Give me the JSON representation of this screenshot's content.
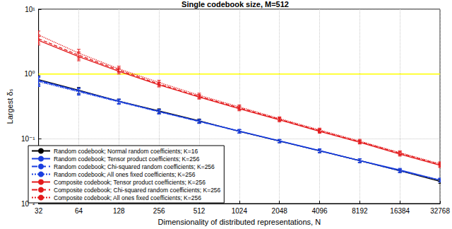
{
  "chart_data": {
    "type": "line",
    "title": "Single codebook size, M=512",
    "x_label": "Dimensionality of distributed representations, N",
    "y_label": "Largest δₛ",
    "log": true,
    "grid": true,
    "legend": "lower left",
    "x": [
      32,
      64,
      128,
      256,
      512,
      1024,
      2048,
      4096,
      8192,
      16384,
      32768
    ],
    "xlim": [
      32,
      32768
    ],
    "xticks": [
      32,
      64,
      128,
      256,
      512,
      1024,
      2048,
      4096,
      8192,
      16384,
      32768
    ],
    "ylim": [
      0.01,
      10
    ],
    "yticks": [
      {
        "value": 0.01,
        "label": "10⁻²"
      },
      {
        "value": 0.1,
        "label": "10⁻¹"
      },
      {
        "value": 1,
        "label": "10⁰"
      },
      {
        "value": 10,
        "label": "10¹"
      }
    ],
    "hlines": [
      {
        "y": 1,
        "color": "#ffff00"
      }
    ],
    "series": [
      {
        "name": "Random codebook; Normal random coefficients; K=16",
        "color": "#000000",
        "line_style": "solid",
        "values": [
          0.82,
          0.56,
          0.38,
          0.27,
          0.19,
          0.13,
          0.092,
          0.065,
          0.046,
          0.032,
          0.022
        ],
        "errors": [
          0.12,
          0.06,
          0.03,
          0.02,
          0.012,
          0.008,
          0.005,
          0.004,
          0.003,
          0.002,
          0.0015
        ]
      },
      {
        "name": "Random codebook; Tensor product coefficients; K=256",
        "color": "#1a3fe0",
        "line_style": "solid",
        "values": [
          0.8,
          0.55,
          0.38,
          0.265,
          0.187,
          0.132,
          0.093,
          0.066,
          0.046,
          0.033,
          0.023
        ],
        "errors": [
          0.12,
          0.06,
          0.03,
          0.02,
          0.012,
          0.008,
          0.005,
          0.004,
          0.003,
          0.002,
          0.0015
        ]
      },
      {
        "name": "Random codebook; Chi-squared random coefficients; K=256",
        "color": "#1a3fe0",
        "line_style": "dashed",
        "values": [
          0.78,
          0.54,
          0.375,
          0.262,
          0.185,
          0.13,
          0.092,
          0.065,
          0.046,
          0.032,
          0.023
        ],
        "errors": [
          0.12,
          0.06,
          0.03,
          0.02,
          0.012,
          0.008,
          0.005,
          0.004,
          0.003,
          0.002,
          0.0015
        ]
      },
      {
        "name": "Random codebook; All ones fixed coefficients; K=256",
        "color": "#1a3fe0",
        "line_style": "dotted",
        "values": [
          0.76,
          0.53,
          0.37,
          0.26,
          0.184,
          0.13,
          0.092,
          0.065,
          0.046,
          0.032,
          0.023
        ],
        "errors": [
          0.12,
          0.06,
          0.03,
          0.02,
          0.012,
          0.008,
          0.005,
          0.004,
          0.003,
          0.002,
          0.0015
        ]
      },
      {
        "name": "Composite codebook; Tensor product coefficients; K=256",
        "color": "#e31a1c",
        "line_style": "solid",
        "values": [
          3.3,
          1.85,
          1.1,
          0.68,
          0.44,
          0.29,
          0.195,
          0.13,
          0.088,
          0.058,
          0.039
        ],
        "errors": [
          0.5,
          0.25,
          0.1,
          0.05,
          0.03,
          0.02,
          0.012,
          0.008,
          0.005,
          0.004,
          0.003
        ]
      },
      {
        "name": "Composite codebook; Chi-squared random coefficients; K=256",
        "color": "#e31a1c",
        "line_style": "dashed",
        "values": [
          3.5,
          1.95,
          1.15,
          0.7,
          0.45,
          0.3,
          0.2,
          0.133,
          0.09,
          0.06,
          0.04
        ],
        "errors": [
          0.5,
          0.25,
          0.1,
          0.05,
          0.03,
          0.02,
          0.012,
          0.008,
          0.005,
          0.004,
          0.003
        ]
      },
      {
        "name": "Composite codebook; All ones fixed coefficients; K=256",
        "color": "#e31a1c",
        "line_style": "dotted",
        "values": [
          4.0,
          2.1,
          1.2,
          0.74,
          0.47,
          0.31,
          0.205,
          0.137,
          0.092,
          0.061,
          0.041
        ],
        "errors": [
          0.6,
          0.3,
          0.12,
          0.06,
          0.035,
          0.022,
          0.013,
          0.009,
          0.006,
          0.004,
          0.003
        ]
      }
    ]
  }
}
